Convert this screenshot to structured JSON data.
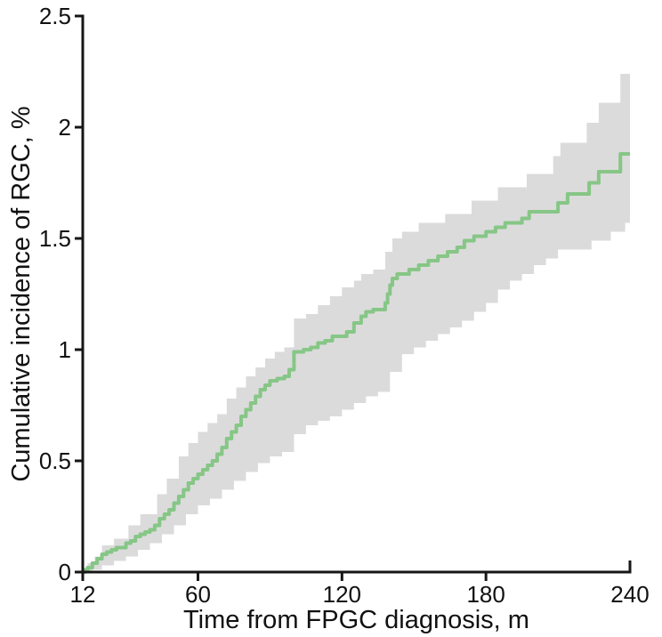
{
  "figure": {
    "background": "#ffffff",
    "axis_color": "#161616",
    "text_color": "#111111"
  },
  "chart_data": {
    "type": "line",
    "subtype": "cumulative-incidence-step-curve-with-confidence-band",
    "title": "",
    "xlabel": "Time from FPGC diagnosis, m",
    "ylabel": "Cumulative incidence of RGC, %",
    "xlim": [
      12,
      240
    ],
    "ylim": [
      0,
      2.5
    ],
    "grid": false,
    "legend_position": "none",
    "x_ticks": [
      12,
      60,
      120,
      180,
      240
    ],
    "x_tick_labels": [
      "12",
      "60",
      "120",
      "180",
      "240"
    ],
    "y_ticks": [
      0,
      0.5,
      1,
      1.5,
      2,
      2.5
    ],
    "y_tick_labels": [
      "0",
      "0.5",
      "1",
      "1.5",
      "2",
      "2.5"
    ],
    "series": [
      {
        "name": "Cumulative incidence of RGC",
        "color": "#86c686",
        "line_width": 4,
        "step": true,
        "points": [
          [
            12,
            0.0
          ],
          [
            13,
            0.01
          ],
          [
            14,
            0.02
          ],
          [
            16,
            0.04
          ],
          [
            18,
            0.06
          ],
          [
            20,
            0.08
          ],
          [
            22,
            0.09
          ],
          [
            24,
            0.1
          ],
          [
            26,
            0.11
          ],
          [
            30,
            0.13
          ],
          [
            32,
            0.14
          ],
          [
            34,
            0.16
          ],
          [
            36,
            0.17
          ],
          [
            38,
            0.18
          ],
          [
            40,
            0.19
          ],
          [
            42,
            0.21
          ],
          [
            44,
            0.24
          ],
          [
            46,
            0.26
          ],
          [
            48,
            0.28
          ],
          [
            50,
            0.31
          ],
          [
            52,
            0.34
          ],
          [
            54,
            0.37
          ],
          [
            56,
            0.4
          ],
          [
            58,
            0.42
          ],
          [
            60,
            0.44
          ],
          [
            62,
            0.46
          ],
          [
            64,
            0.48
          ],
          [
            66,
            0.5
          ],
          [
            68,
            0.53
          ],
          [
            70,
            0.56
          ],
          [
            72,
            0.6
          ],
          [
            74,
            0.63
          ],
          [
            76,
            0.66
          ],
          [
            78,
            0.7
          ],
          [
            80,
            0.73
          ],
          [
            82,
            0.76
          ],
          [
            84,
            0.79
          ],
          [
            86,
            0.82
          ],
          [
            88,
            0.84
          ],
          [
            90,
            0.86
          ],
          [
            93,
            0.87
          ],
          [
            96,
            0.88
          ],
          [
            98,
            0.91
          ],
          [
            100,
            0.99
          ],
          [
            104,
            1.0
          ],
          [
            107,
            1.01
          ],
          [
            110,
            1.03
          ],
          [
            113,
            1.04
          ],
          [
            116,
            1.06
          ],
          [
            119,
            1.06
          ],
          [
            122,
            1.08
          ],
          [
            125,
            1.12
          ],
          [
            128,
            1.15
          ],
          [
            130,
            1.17
          ],
          [
            133,
            1.18
          ],
          [
            138,
            1.21
          ],
          [
            139,
            1.25
          ],
          [
            140,
            1.29
          ],
          [
            141,
            1.32
          ],
          [
            143,
            1.34
          ],
          [
            148,
            1.36
          ],
          [
            152,
            1.38
          ],
          [
            156,
            1.4
          ],
          [
            160,
            1.42
          ],
          [
            164,
            1.44
          ],
          [
            168,
            1.46
          ],
          [
            171,
            1.49
          ],
          [
            175,
            1.51
          ],
          [
            180,
            1.53
          ],
          [
            184,
            1.55
          ],
          [
            188,
            1.57
          ],
          [
            195,
            1.59
          ],
          [
            198,
            1.62
          ],
          [
            210,
            1.66
          ],
          [
            214,
            1.7
          ],
          [
            223,
            1.75
          ],
          [
            227,
            1.8
          ],
          [
            236,
            1.88
          ],
          [
            240,
            1.88
          ]
        ]
      }
    ],
    "confidence_band": {
      "color": "#dbdbdb",
      "upper": [
        [
          12,
          0.0
        ],
        [
          14,
          0.04
        ],
        [
          17,
          0.07
        ],
        [
          20,
          0.12
        ],
        [
          25,
          0.15
        ],
        [
          31,
          0.21
        ],
        [
          36,
          0.26
        ],
        [
          43,
          0.35
        ],
        [
          47,
          0.42
        ],
        [
          52,
          0.52
        ],
        [
          56,
          0.58
        ],
        [
          60,
          0.63
        ],
        [
          64,
          0.67
        ],
        [
          68,
          0.71
        ],
        [
          72,
          0.78
        ],
        [
          76,
          0.83
        ],
        [
          80,
          0.88
        ],
        [
          84,
          0.92
        ],
        [
          88,
          0.96
        ],
        [
          92,
          0.99
        ],
        [
          96,
          1.01
        ],
        [
          100,
          1.14
        ],
        [
          105,
          1.16
        ],
        [
          110,
          1.2
        ],
        [
          115,
          1.24
        ],
        [
          120,
          1.28
        ],
        [
          125,
          1.31
        ],
        [
          128,
          1.34
        ],
        [
          133,
          1.36
        ],
        [
          138,
          1.44
        ],
        [
          141,
          1.5
        ],
        [
          145,
          1.53
        ],
        [
          152,
          1.57
        ],
        [
          163,
          1.61
        ],
        [
          174,
          1.67
        ],
        [
          185,
          1.73
        ],
        [
          197,
          1.79
        ],
        [
          208,
          1.87
        ],
        [
          211,
          1.93
        ],
        [
          222,
          2.02
        ],
        [
          227,
          2.11
        ],
        [
          236,
          2.24
        ],
        [
          240,
          2.24
        ]
      ],
      "lower": [
        [
          12,
          0.0
        ],
        [
          16,
          0.01
        ],
        [
          20,
          0.03
        ],
        [
          25,
          0.05
        ],
        [
          30,
          0.07
        ],
        [
          35,
          0.1
        ],
        [
          40,
          0.13
        ],
        [
          45,
          0.17
        ],
        [
          50,
          0.21
        ],
        [
          55,
          0.26
        ],
        [
          60,
          0.3
        ],
        [
          65,
          0.33
        ],
        [
          70,
          0.37
        ],
        [
          75,
          0.41
        ],
        [
          80,
          0.45
        ],
        [
          85,
          0.49
        ],
        [
          90,
          0.52
        ],
        [
          95,
          0.54
        ],
        [
          100,
          0.62
        ],
        [
          105,
          0.66
        ],
        [
          110,
          0.68
        ],
        [
          115,
          0.7
        ],
        [
          120,
          0.73
        ],
        [
          125,
          0.76
        ],
        [
          130,
          0.79
        ],
        [
          135,
          0.81
        ],
        [
          140,
          0.9
        ],
        [
          145,
          0.98
        ],
        [
          150,
          1.01
        ],
        [
          155,
          1.04
        ],
        [
          160,
          1.07
        ],
        [
          165,
          1.1
        ],
        [
          170,
          1.13
        ],
        [
          175,
          1.17
        ],
        [
          180,
          1.21
        ],
        [
          185,
          1.27
        ],
        [
          190,
          1.31
        ],
        [
          195,
          1.34
        ],
        [
          200,
          1.38
        ],
        [
          205,
          1.41
        ],
        [
          210,
          1.45
        ],
        [
          224,
          1.49
        ],
        [
          232,
          1.53
        ],
        [
          238,
          1.57
        ],
        [
          240,
          1.57
        ]
      ]
    }
  }
}
